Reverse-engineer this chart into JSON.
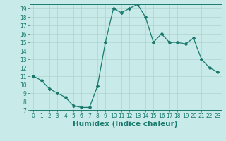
{
  "x": [
    0,
    1,
    2,
    3,
    4,
    5,
    6,
    7,
    8,
    9,
    10,
    11,
    12,
    13,
    14,
    15,
    16,
    17,
    18,
    19,
    20,
    21,
    22,
    23
  ],
  "y": [
    11.0,
    10.5,
    9.5,
    9.0,
    8.5,
    7.5,
    7.3,
    7.3,
    9.8,
    15.0,
    19.0,
    18.5,
    19.0,
    19.5,
    18.0,
    15.0,
    16.0,
    15.0,
    15.0,
    14.8,
    15.5,
    13.0,
    12.0,
    11.5
  ],
  "line_color": "#1a7a6e",
  "marker": "D",
  "marker_size": 2.0,
  "bg_color": "#c8eae8",
  "grid_color": "#b0d4d0",
  "xlabel": "Humidex (Indice chaleur)",
  "xlim": [
    -0.5,
    23.5
  ],
  "ylim": [
    7,
    19.5
  ],
  "yticks": [
    7,
    8,
    9,
    10,
    11,
    12,
    13,
    14,
    15,
    16,
    17,
    18,
    19
  ],
  "xticks": [
    0,
    1,
    2,
    3,
    4,
    5,
    6,
    7,
    8,
    9,
    10,
    11,
    12,
    13,
    14,
    15,
    16,
    17,
    18,
    19,
    20,
    21,
    22,
    23
  ],
  "tick_label_fontsize": 5.5,
  "xlabel_fontsize": 7.5
}
